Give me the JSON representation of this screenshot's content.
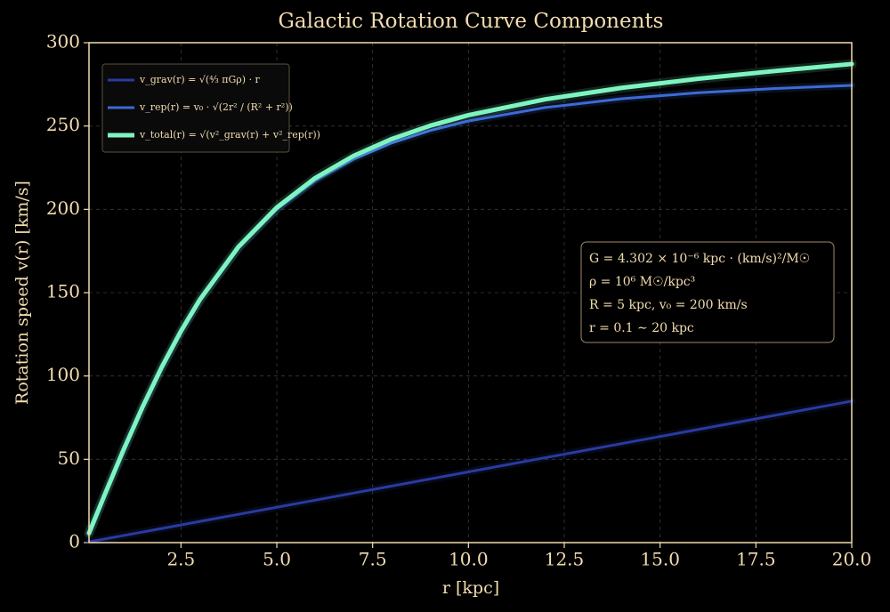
{
  "chart_data": {
    "type": "line",
    "title": "Galactic Rotation Curve Components",
    "x_label": "r [kpc]",
    "y_label": "Rotation speed v(r) [km/s]",
    "x": [
      0.1,
      0.5,
      1,
      1.5,
      2,
      2.5,
      3,
      4,
      5,
      6,
      7,
      8,
      9,
      10,
      12,
      14,
      16,
      18,
      20
    ],
    "series": [
      {
        "name": "v_grav(r) = √(⁴⁄₃ πGρ) · r",
        "color": "#2b3a9e",
        "width": 3,
        "values": [
          0.42,
          2.12,
          4.25,
          6.37,
          8.49,
          10.61,
          12.74,
          16.98,
          21.23,
          25.47,
          29.72,
          33.96,
          38.21,
          42.45,
          50.94,
          59.43,
          67.92,
          76.41,
          84.9
        ]
      },
      {
        "name": "v_rep(r) = v₀ · √(2r² / (R² + r²))",
        "color": "#3d6ad6",
        "width": 3,
        "values": [
          5.66,
          28.14,
          55.47,
          81.27,
          105.05,
          126.49,
          145.52,
          176.69,
          200.0,
          217.29,
          230.16,
          239.85,
          247.24,
          252.98,
          261.08,
          266.36,
          269.97,
          272.51,
          274.39
        ]
      },
      {
        "name": "v_total(r) = √(v²_grav(r) + v²_rep(r))",
        "color": "#7ef5c0",
        "width": 5,
        "values": [
          5.67,
          28.22,
          55.63,
          81.52,
          105.39,
          126.93,
          146.08,
          177.5,
          201.12,
          218.78,
          232.07,
          242.24,
          250.18,
          256.52,
          266.0,
          272.91,
          278.38,
          283.02,
          287.22
        ]
      }
    ],
    "annotations": [
      "G = 4.302 × 10⁻⁶ kpc · (km/s)²/M☉",
      "ρ = 10⁶ M☉/kpc³",
      "R = 5 kpc,  v₀ = 200 km/s",
      "r = 0.1 ∼ 20 kpc"
    ],
    "xlim": [
      0.1,
      20
    ],
    "ylim": [
      0,
      300
    ],
    "xticks": [
      2.5,
      {
        "value": 5,
        "label": "5.0"
      },
      7.5,
      {
        "value": 10,
        "label": "10.0"
      },
      12.5,
      {
        "value": 15,
        "label": "15.0"
      },
      17.5,
      {
        "value": 20,
        "label": "20.0"
      }
    ],
    "yticks": [
      0,
      50,
      100,
      150,
      200,
      250,
      300
    ],
    "grid": true,
    "legend": "upper left"
  }
}
